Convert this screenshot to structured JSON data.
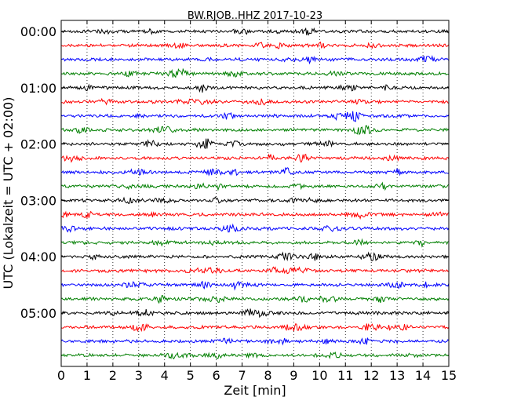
{
  "chart_data": {
    "type": "line",
    "subtype": "dayplot-seismogram",
    "title": "BW.RJOB..HHZ 2017-10-23",
    "xlabel": "Zeit  [min]",
    "ylabel": "UTC (Lokalzeit = UTC + 02:00)",
    "xlim": [
      0,
      15
    ],
    "xticks": [
      "0",
      "1",
      "2",
      "3",
      "4",
      "5",
      "6",
      "7",
      "8",
      "9",
      "10",
      "11",
      "12",
      "13",
      "14",
      "15"
    ],
    "row_labels": [
      "00:00",
      "01:00",
      "02:00",
      "03:00",
      "04:00",
      "05:00"
    ],
    "rows_per_label": 4,
    "row_interval_min": 15,
    "n_rows": 24,
    "grid": "vertical-dotted",
    "colors": [
      "#000000",
      "#ff0000",
      "#0000ff",
      "#007f00"
    ]
  }
}
